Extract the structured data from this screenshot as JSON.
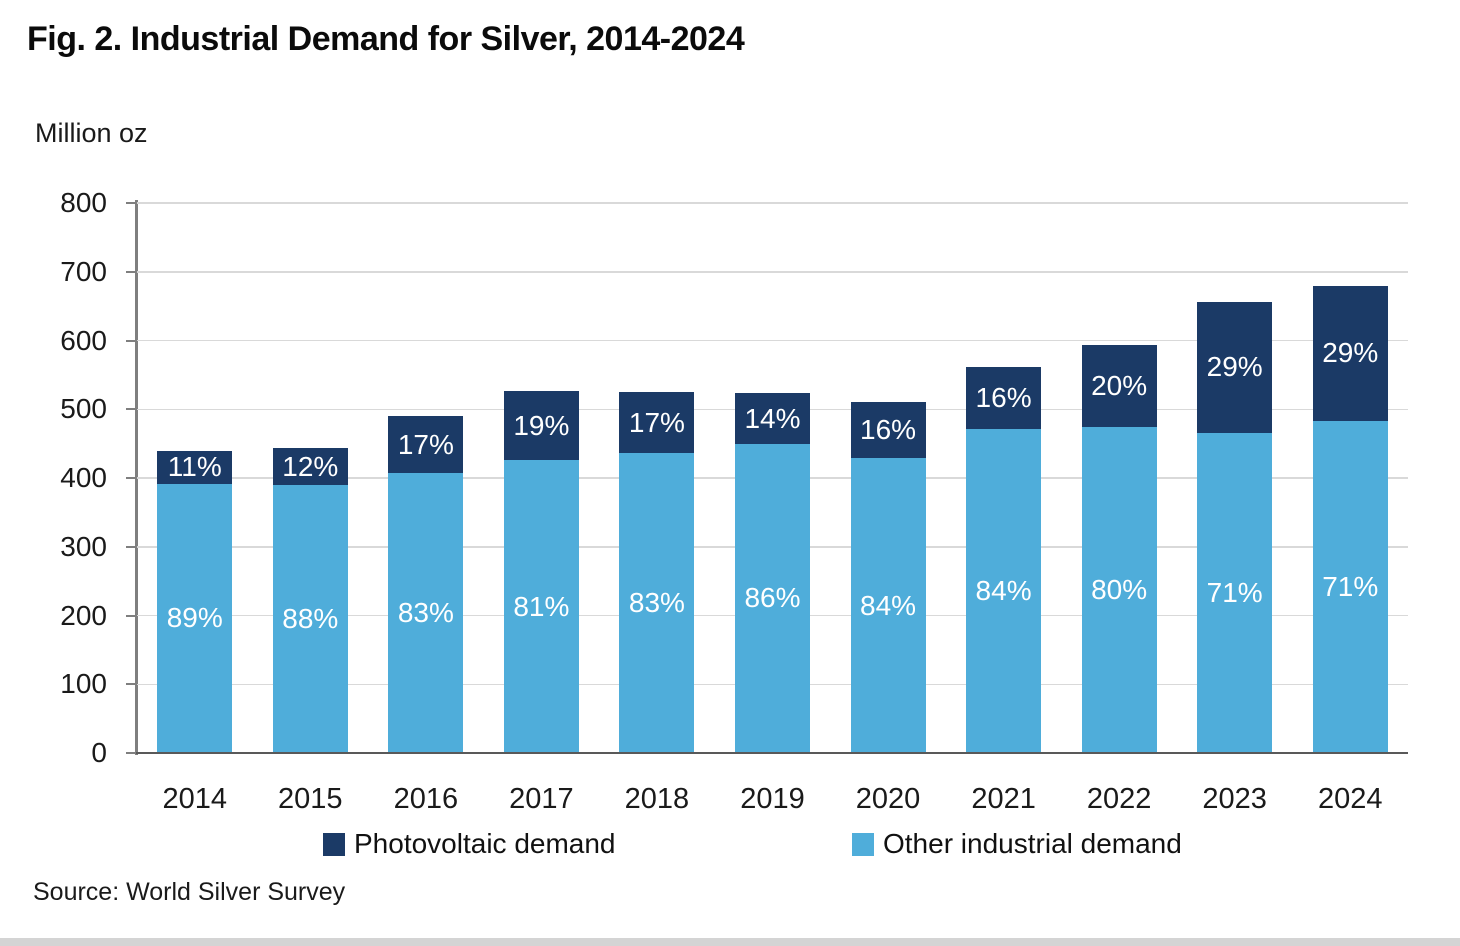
{
  "figure": {
    "title": "Fig. 2. Industrial Demand for Silver, 2014-2024",
    "unit_label": "Million oz",
    "source": "Source: World Silver Survey"
  },
  "colors": {
    "photovoltaic": "#1B3A66",
    "other_industrial": "#4FADDA",
    "gridline": "#D9D9D9",
    "axis": "#7F7F7F",
    "baseline": "#595959",
    "label_text": "#FFFFFF"
  },
  "chart_data": {
    "type": "bar",
    "stacked": true,
    "title": "Fig. 2. Industrial Demand for Silver, 2014-2024",
    "ylabel": "Million oz",
    "xlabel": "",
    "categories": [
      "2014",
      "2015",
      "2016",
      "2017",
      "2018",
      "2019",
      "2020",
      "2021",
      "2022",
      "2023",
      "2024"
    ],
    "totals_million_oz": [
      440,
      443,
      490,
      526,
      525,
      523,
      511,
      561,
      593,
      656,
      680
    ],
    "series": [
      {
        "name": "Photovoltaic demand",
        "color": "#1B3A66",
        "values_million_oz": [
          48,
          53,
          83,
          100,
          89,
          73,
          82,
          90,
          119,
          190,
          197
        ],
        "labels": [
          "11%",
          "12%",
          "17%",
          "19%",
          "17%",
          "14%",
          "16%",
          "16%",
          "20%",
          "29%",
          "29%"
        ]
      },
      {
        "name": "Other industrial demand",
        "color": "#4FADDA",
        "values_million_oz": [
          392,
          390,
          407,
          426,
          436,
          450,
          429,
          471,
          474,
          466,
          483
        ],
        "labels": [
          "89%",
          "88%",
          "83%",
          "81%",
          "83%",
          "86%",
          "84%",
          "84%",
          "80%",
          "71%",
          "71%"
        ]
      }
    ],
    "ylim": [
      0,
      800
    ],
    "yticks": [
      "0",
      "100",
      "200",
      "300",
      "400",
      "500",
      "600",
      "700",
      "800"
    ],
    "grid": true,
    "legend_position": "bottom"
  }
}
